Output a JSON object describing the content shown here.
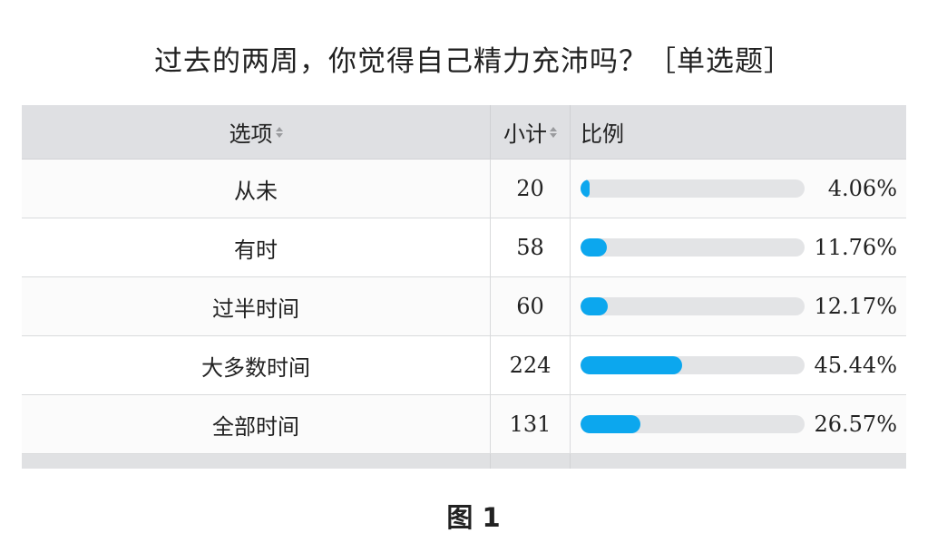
{
  "title": "过去的两周，你觉得自己精力充沛吗？［单选题］",
  "table": {
    "headers": {
      "option": "选项",
      "count": "小计",
      "ratio": "比例"
    },
    "rows": [
      {
        "option": "从未",
        "count": "20",
        "percent": "4.06%",
        "fraction": 0.0406
      },
      {
        "option": "有时",
        "count": "58",
        "percent": "11.76%",
        "fraction": 0.1176
      },
      {
        "option": "过半时间",
        "count": "60",
        "percent": "12.17%",
        "fraction": 0.1217
      },
      {
        "option": "大多数时间",
        "count": "224",
        "percent": "45.44%",
        "fraction": 0.4544
      },
      {
        "option": "全部时间",
        "count": "131",
        "percent": "26.57%",
        "fraction": 0.2657
      }
    ]
  },
  "caption": "图 1",
  "colors": {
    "bar": "#0ca7ee",
    "track": "#e3e4e6",
    "header": "#dfe0e3"
  },
  "icons": {
    "sort": "sort-arrows-icon"
  }
}
